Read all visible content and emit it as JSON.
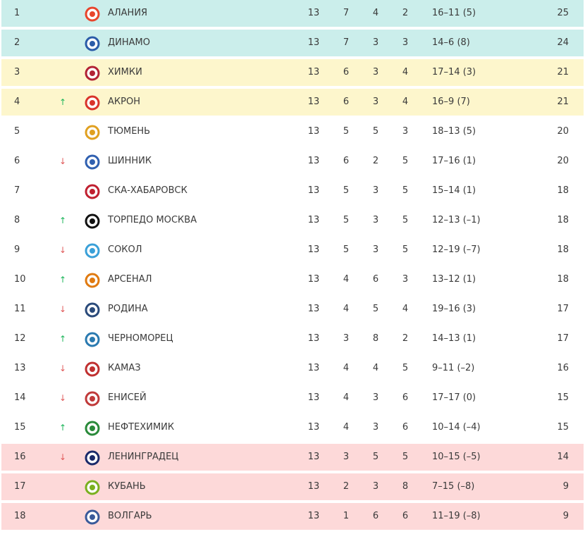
{
  "table": {
    "rows": [
      [
        1,
        null,
        "АЛАНИЯ",
        13,
        7,
        4,
        2,
        "16–11 (5)",
        25
      ],
      [
        2,
        null,
        "ДИНАМО",
        13,
        7,
        3,
        3,
        "14–6 (8)",
        24
      ],
      [
        3,
        null,
        "ХИМКИ",
        13,
        6,
        3,
        4,
        "17–14 (3)",
        21
      ],
      [
        4,
        "↑",
        "АКРОН",
        13,
        6,
        3,
        4,
        "16–9 (7)",
        21
      ],
      [
        5,
        null,
        "ТЮМЕНЬ",
        13,
        5,
        5,
        3,
        "18–13 (5)",
        20
      ],
      [
        6,
        "↓",
        "ШИННИК",
        13,
        6,
        2,
        5,
        "17–16 (1)",
        20
      ],
      [
        7,
        null,
        "СКА-ХАБАРОВСК",
        13,
        5,
        3,
        5,
        "15–14 (1)",
        18
      ],
      [
        8,
        "↑",
        "ТОРПЕДО МОСКВА",
        13,
        5,
        3,
        5,
        "12–13 (–1)",
        18
      ],
      [
        9,
        "↓",
        "СОКОЛ",
        13,
        5,
        3,
        5,
        "12–19 (–7)",
        18
      ],
      [
        10,
        "↑",
        "АРСЕНАЛ",
        13,
        4,
        6,
        3,
        "13–12 (1)",
        18
      ],
      [
        11,
        "↓",
        "РОДИНА",
        13,
        4,
        5,
        4,
        "19–16 (3)",
        17
      ],
      [
        12,
        "↑",
        "ЧЕРНОМОРЕЦ",
        13,
        3,
        8,
        2,
        "14–13 (1)",
        17
      ],
      [
        13,
        "↓",
        "КАМАЗ",
        13,
        4,
        4,
        5,
        "9–11 (–2)",
        16
      ],
      [
        14,
        "↓",
        "ЕНИСЕЙ",
        13,
        4,
        3,
        6,
        "17–17 (0)",
        15
      ],
      [
        15,
        "↑",
        "НЕФТЕХИМИК",
        13,
        4,
        3,
        6,
        "10–14 (–4)",
        15
      ],
      [
        16,
        "↓",
        "ЛЕНИНГРАДЕЦ",
        13,
        3,
        5,
        5,
        "10–15 (–5)",
        14
      ],
      [
        17,
        null,
        "КУБАНЬ",
        13,
        2,
        3,
        8,
        "7–15 (–8)",
        9
      ],
      [
        18,
        null,
        "ВОЛГАРЬ",
        13,
        1,
        6,
        6,
        "11–19 (–8)",
        9
      ]
    ]
  }
}
